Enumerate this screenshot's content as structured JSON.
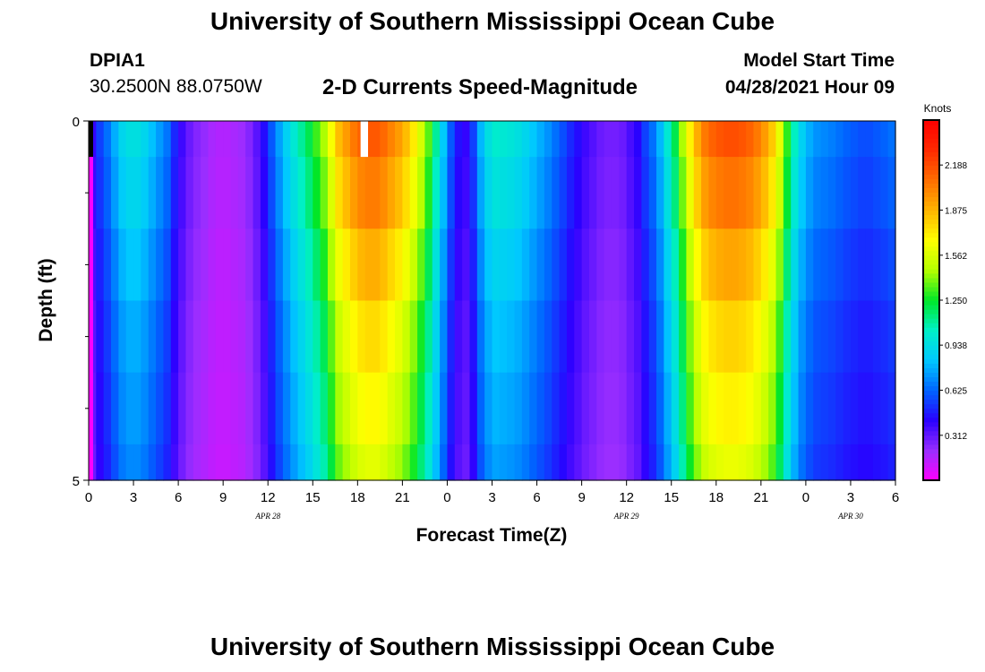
{
  "header": {
    "title": "University of Southern Mississippi Ocean Cube",
    "station_id": "DPIA1",
    "coordinates": "30.2500N  88.0750W",
    "chart_title": "2-D Currents Speed-Magnitude",
    "model_start_label": "Model Start Time",
    "model_start_value": "04/28/2021 Hour 09"
  },
  "footer": {
    "title": "University of Southern Mississippi Ocean Cube"
  },
  "colors": {
    "scale": [
      "#ff00ff",
      "#9a2eff",
      "#2a00ff",
      "#0064ff",
      "#00c8ff",
      "#00f0c8",
      "#00e628",
      "#b4ff00",
      "#ffff00",
      "#ffb400",
      "#ff6e00",
      "#ff2a00",
      "#ff0000"
    ],
    "missing": "#000000",
    "gap": "#ffffff"
  },
  "chart_data": {
    "type": "heatmap",
    "title": "2-D Currents Speed-Magnitude",
    "xlabel": "Forecast Time(Z)",
    "ylabel": "Depth (ft)",
    "colorbar_label": "Knots",
    "colorbar_ticks": [
      "2.188",
      "1.875",
      "1.562",
      "1.250",
      "0.938",
      "0.625",
      "0.312"
    ],
    "colorbar_tick_values": [
      2.188,
      1.875,
      1.562,
      1.25,
      0.938,
      0.625,
      0.312
    ],
    "colorbar_range": [
      0,
      2.5
    ],
    "y_tick_labels": [
      "0",
      "5"
    ],
    "y_range": [
      0,
      5
    ],
    "y_minor_ticks": [
      1,
      2,
      3,
      4
    ],
    "x_range": [
      0,
      54
    ],
    "x_tick_hours": [
      0,
      3,
      6,
      9,
      12,
      15,
      18,
      21,
      24,
      27,
      30,
      33,
      36,
      39,
      42,
      45,
      48,
      51,
      54
    ],
    "x_tick_labels": [
      "0",
      "3",
      "6",
      "9",
      "12",
      "15",
      "18",
      "21",
      "0",
      "3",
      "6",
      "9",
      "12",
      "15",
      "18",
      "21",
      "0",
      "3",
      "6"
    ],
    "date_labels": [
      {
        "text": "APR  28",
        "hour": 12
      },
      {
        "text": "APR  29",
        "hour": 36
      },
      {
        "text": "APR  30",
        "hour": 51
      }
    ],
    "time_hours": [
      0,
      0.5,
      1,
      1.5,
      2,
      2.5,
      3,
      3.5,
      4,
      4.5,
      5,
      5.5,
      6,
      6.5,
      7,
      7.5,
      8,
      8.5,
      9,
      9.5,
      10,
      10.5,
      11,
      11.5,
      12,
      12.5,
      13,
      13.5,
      14,
      14.5,
      15,
      15.5,
      16,
      16.5,
      17,
      17.5,
      18,
      18.5,
      19,
      19.5,
      20,
      20.5,
      21,
      21.5,
      22,
      22.5,
      23,
      23.5,
      24,
      24.5,
      25,
      25.5,
      26,
      26.5,
      27,
      27.5,
      28,
      28.5,
      29,
      29.5,
      30,
      30.5,
      31,
      31.5,
      32,
      32.5,
      33,
      33.5,
      34,
      34.5,
      35,
      35.5,
      36,
      36.5,
      37,
      37.5,
      38,
      38.5,
      39,
      39.5,
      40,
      40.5,
      41,
      41.5,
      42,
      42.5,
      43,
      43.5,
      44,
      44.5,
      45,
      45.5,
      46,
      46.5,
      47,
      47.5,
      48,
      48.5,
      49,
      49.5,
      50,
      50.5,
      51,
      51.5,
      52,
      52.5,
      53,
      53.5
    ],
    "depth_bands_ft": [
      [
        0,
        0.5
      ],
      [
        0.5,
        1.5
      ],
      [
        1.5,
        2.5
      ],
      [
        2.5,
        3.5
      ],
      [
        3.5,
        4.5
      ],
      [
        4.5,
        5
      ]
    ],
    "surface_speed_knots": [
      0.4,
      0.55,
      0.65,
      0.78,
      0.9,
      0.95,
      0.95,
      0.9,
      0.82,
      0.74,
      0.66,
      0.5,
      0.38,
      0.3,
      0.25,
      0.22,
      0.18,
      0.16,
      0.16,
      0.18,
      0.2,
      0.25,
      0.33,
      0.44,
      0.6,
      0.75,
      0.88,
      1.0,
      1.1,
      1.2,
      1.32,
      1.45,
      1.65,
      1.85,
      1.95,
      2.05,
      2.12,
      2.15,
      2.15,
      2.1,
      2.02,
      1.95,
      1.85,
      1.72,
      1.55,
      1.35,
      1.1,
      0.85,
      0.6,
      0.45,
      0.4,
      0.55,
      0.8,
      0.95,
      1.02,
      1.0,
      0.98,
      0.95,
      0.9,
      0.84,
      0.78,
      0.72,
      0.65,
      0.58,
      0.5,
      0.44,
      0.38,
      0.34,
      0.3,
      0.28,
      0.28,
      0.3,
      0.36,
      0.42,
      0.55,
      0.65,
      0.8,
      1.0,
      1.2,
      1.45,
      1.7,
      1.9,
      2.05,
      2.12,
      2.16,
      2.18,
      2.18,
      2.16,
      2.12,
      2.05,
      1.95,
      1.82,
      1.6,
      1.3,
      1.05,
      0.88,
      0.78,
      0.72,
      0.7,
      0.68,
      0.65,
      0.62,
      0.6,
      0.58,
      0.58,
      0.6,
      0.62,
      0.65
    ],
    "depth_factors": [
      1.0,
      0.95,
      0.88,
      0.82,
      0.78,
      0.74
    ],
    "missing_cells": [
      {
        "hour_start": 0,
        "hour_end": 0.3,
        "band": 0,
        "kind": "missing"
      },
      {
        "hour_start": 18.2,
        "hour_end": 18.7,
        "band": 0,
        "kind": "gap"
      }
    ]
  },
  "axis_labels": {
    "x": "Forecast Time(Z)",
    "y": "Depth (ft)",
    "colorbar": "Knots"
  }
}
